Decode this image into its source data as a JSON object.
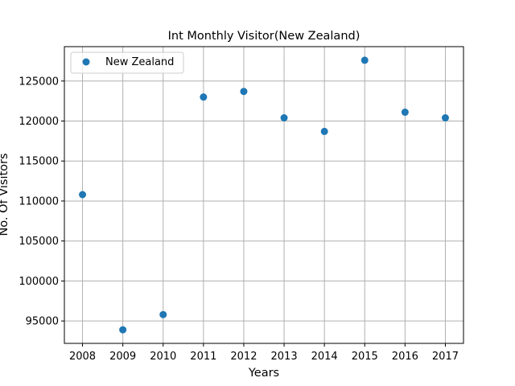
{
  "chart_data": {
    "type": "scatter",
    "title": "Int Monthly Visitor(New Zealand)",
    "xlabel": "Years",
    "ylabel": "No. Of Visitors",
    "x": [
      2008,
      2009,
      2010,
      2011,
      2012,
      2013,
      2014,
      2015,
      2016,
      2017
    ],
    "series": [
      {
        "name": "New Zealand",
        "color": "#1f77b4",
        "values": [
          110800,
          93900,
          95800,
          123000,
          123700,
          120400,
          118700,
          127600,
          121100,
          120400
        ]
      }
    ],
    "x_ticks": [
      "2008",
      "2009",
      "2010",
      "2011",
      "2012",
      "2013",
      "2014",
      "2015",
      "2016",
      "2017"
    ],
    "y_ticks": [
      "95000",
      "100000",
      "105000",
      "110000",
      "115000",
      "120000",
      "125000"
    ],
    "y_tick_values": [
      95000,
      100000,
      105000,
      110000,
      115000,
      120000,
      125000
    ],
    "xlim": [
      2007.55,
      2017.45
    ],
    "ylim": [
      92200,
      129300
    ],
    "grid": true,
    "legend_position": "upper-left"
  }
}
